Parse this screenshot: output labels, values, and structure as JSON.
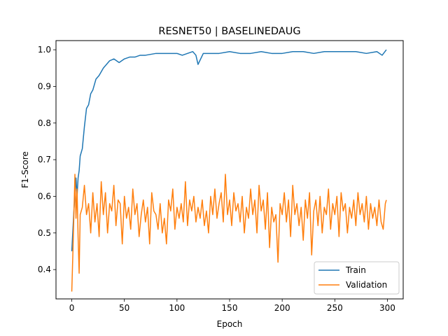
{
  "chart_data": {
    "type": "line",
    "title": "RESNET50 | BASELINEDAUG",
    "xlabel": "Epoch",
    "ylabel": "F1-Score",
    "xlim": [
      -15,
      315
    ],
    "ylim": [
      0.32,
      1.025
    ],
    "xticks": [
      0,
      50,
      100,
      150,
      200,
      250,
      300
    ],
    "yticks": [
      0.4,
      0.5,
      0.6,
      0.7,
      0.8,
      0.9,
      1.0
    ],
    "xtick_labels": [
      "0",
      "50",
      "100",
      "150",
      "200",
      "250",
      "300"
    ],
    "ytick_labels": [
      "0.4",
      "0.5",
      "0.6",
      "0.7",
      "0.8",
      "0.9",
      "1.0"
    ],
    "grid": false,
    "legend_position": "lower-right",
    "series": [
      {
        "name": "Train",
        "color": "#1f77b4",
        "x": [
          0,
          2,
          4,
          5,
          6,
          7,
          8,
          10,
          12,
          14,
          16,
          18,
          20,
          23,
          26,
          30,
          33,
          36,
          40,
          45,
          50,
          55,
          60,
          65,
          70,
          80,
          90,
          100,
          105,
          110,
          115,
          118,
          120,
          125,
          130,
          140,
          150,
          160,
          170,
          180,
          190,
          200,
          210,
          220,
          230,
          240,
          250,
          260,
          270,
          280,
          290,
          295,
          299
        ],
        "values": [
          0.45,
          0.56,
          0.65,
          0.6,
          0.65,
          0.67,
          0.71,
          0.73,
          0.79,
          0.84,
          0.85,
          0.88,
          0.89,
          0.92,
          0.93,
          0.95,
          0.96,
          0.97,
          0.975,
          0.965,
          0.975,
          0.98,
          0.98,
          0.985,
          0.985,
          0.99,
          0.99,
          0.99,
          0.985,
          0.99,
          0.995,
          0.985,
          0.96,
          0.99,
          0.99,
          0.99,
          0.995,
          0.99,
          0.99,
          0.995,
          0.99,
          0.99,
          0.995,
          0.995,
          0.99,
          0.995,
          0.995,
          0.995,
          0.995,
          0.99,
          0.995,
          0.985,
          1.0
        ]
      },
      {
        "name": "Validation",
        "color": "#ff7f0e",
        "x": [
          0,
          1,
          3,
          4,
          5,
          6,
          7,
          8,
          10,
          12,
          14,
          16,
          18,
          20,
          22,
          24,
          26,
          28,
          30,
          32,
          34,
          36,
          38,
          40,
          42,
          44,
          46,
          48,
          50,
          52,
          54,
          56,
          58,
          60,
          62,
          64,
          66,
          68,
          70,
          72,
          74,
          76,
          78,
          80,
          82,
          84,
          86,
          88,
          90,
          92,
          94,
          96,
          98,
          100,
          102,
          104,
          106,
          108,
          110,
          112,
          114,
          116,
          118,
          120,
          122,
          124,
          126,
          128,
          130,
          132,
          134,
          136,
          138,
          140,
          142,
          144,
          146,
          148,
          150,
          152,
          154,
          156,
          158,
          160,
          162,
          164,
          166,
          168,
          170,
          172,
          174,
          176,
          178,
          180,
          182,
          184,
          186,
          188,
          190,
          192,
          194,
          196,
          198,
          200,
          202,
          204,
          206,
          208,
          210,
          212,
          214,
          216,
          218,
          220,
          222,
          224,
          226,
          228,
          230,
          232,
          234,
          236,
          238,
          240,
          242,
          244,
          246,
          248,
          250,
          252,
          254,
          256,
          258,
          260,
          262,
          264,
          266,
          268,
          270,
          272,
          274,
          276,
          278,
          280,
          282,
          284,
          286,
          288,
          290,
          292,
          294,
          296,
          298,
          299
        ],
        "values": [
          0.34,
          0.44,
          0.66,
          0.54,
          0.62,
          0.49,
          0.39,
          0.55,
          0.57,
          0.63,
          0.55,
          0.58,
          0.5,
          0.61,
          0.53,
          0.58,
          0.49,
          0.64,
          0.55,
          0.61,
          0.5,
          0.58,
          0.56,
          0.63,
          0.52,
          0.59,
          0.58,
          0.47,
          0.6,
          0.54,
          0.57,
          0.51,
          0.62,
          0.55,
          0.58,
          0.49,
          0.55,
          0.59,
          0.53,
          0.57,
          0.47,
          0.61,
          0.56,
          0.55,
          0.51,
          0.58,
          0.5,
          0.54,
          0.47,
          0.59,
          0.56,
          0.62,
          0.51,
          0.57,
          0.54,
          0.58,
          0.53,
          0.64,
          0.52,
          0.59,
          0.56,
          0.6,
          0.53,
          0.57,
          0.54,
          0.59,
          0.52,
          0.56,
          0.5,
          0.6,
          0.55,
          0.62,
          0.54,
          0.58,
          0.61,
          0.53,
          0.66,
          0.55,
          0.59,
          0.52,
          0.61,
          0.56,
          0.58,
          0.53,
          0.6,
          0.5,
          0.57,
          0.54,
          0.62,
          0.55,
          0.59,
          0.5,
          0.63,
          0.56,
          0.59,
          0.51,
          0.61,
          0.46,
          0.57,
          0.53,
          0.55,
          0.42,
          0.58,
          0.55,
          0.61,
          0.53,
          0.59,
          0.49,
          0.63,
          0.55,
          0.58,
          0.52,
          0.57,
          0.48,
          0.59,
          0.54,
          0.61,
          0.44,
          0.56,
          0.59,
          0.52,
          0.6,
          0.5,
          0.57,
          0.55,
          0.62,
          0.51,
          0.58,
          0.55,
          0.6,
          0.49,
          0.61,
          0.56,
          0.58,
          0.5,
          0.57,
          0.54,
          0.59,
          0.52,
          0.61,
          0.55,
          0.58,
          0.53,
          0.6,
          0.51,
          0.58,
          0.54,
          0.57,
          0.52,
          0.59,
          0.53,
          0.51,
          0.58,
          0.59
        ]
      }
    ]
  }
}
